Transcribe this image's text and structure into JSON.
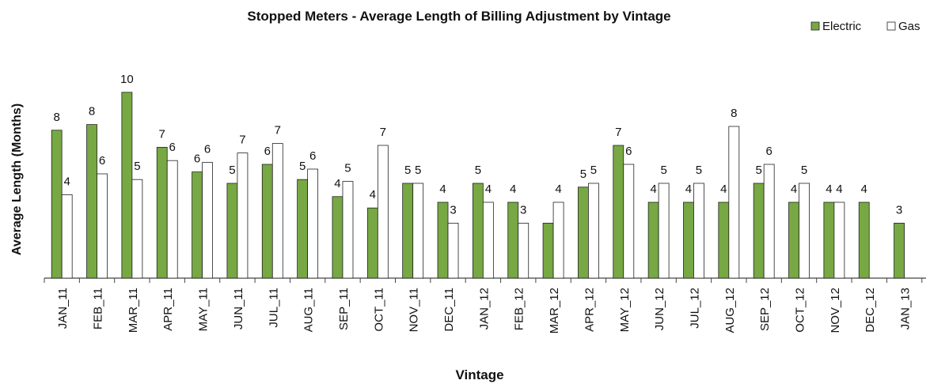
{
  "chart_data": {
    "type": "bar",
    "title": "Stopped Meters  - Average  Length  of Billing Adjustment  by Vintage",
    "x_label": "Vintage",
    "y_label": "Average Length (Months)",
    "categories": [
      "JAN_11",
      "FEB_11",
      "MAR_11",
      "APR_11",
      "MAY_11",
      "JUN_11",
      "JUL_11",
      "AUG_11",
      "SEP_11",
      "OCT_11",
      "NOV_11",
      "DEC_11",
      "JAN_12",
      "FEB_12",
      "MAR_12",
      "APR_12",
      "MAY_12",
      "JUN_12",
      "JUL_12",
      "AUG_12",
      "SEP_12",
      "OCT_12",
      "NOV_12",
      "DEC_12",
      "JAN_13"
    ],
    "ylim": [
      0,
      10.5
    ],
    "legend": "top-right",
    "series": [
      {
        "name": "Electric",
        "color": "#77a843",
        "values": [
          7.8,
          8.1,
          9.8,
          6.9,
          5.6,
          5.0,
          6.0,
          5.2,
          4.3,
          3.7,
          5.0,
          4.0,
          5.0,
          4.0,
          2.9,
          4.8,
          7.0,
          4.0,
          4.0,
          4.0,
          5.0,
          4.0,
          4.0,
          4.0,
          2.9
        ],
        "value_labels": [
          "8",
          "8",
          "10",
          "7",
          "6",
          "5",
          "6",
          "5",
          "4",
          "4",
          "5",
          "4",
          "5",
          "4",
          null,
          "5",
          "7",
          "4",
          "4",
          "4",
          "5",
          "4",
          "4",
          "4",
          "3"
        ]
      },
      {
        "name": "Gas",
        "color": "#ffffff",
        "values": [
          4.4,
          5.5,
          5.2,
          6.2,
          6.1,
          6.6,
          7.1,
          5.75,
          5.1,
          7.0,
          5.0,
          2.9,
          4.0,
          2.9,
          4.0,
          5.0,
          6.0,
          5.0,
          5.0,
          8.0,
          6.0,
          5.0,
          4.0,
          null,
          null
        ],
        "value_labels": [
          "4",
          "6",
          "5",
          "6",
          "6",
          "7",
          "7",
          "6",
          "5",
          "7",
          "5",
          "3",
          "4",
          "3",
          "4",
          "5",
          "6",
          "5",
          "5",
          "8",
          "6",
          "5",
          "4",
          null,
          null
        ]
      }
    ]
  }
}
